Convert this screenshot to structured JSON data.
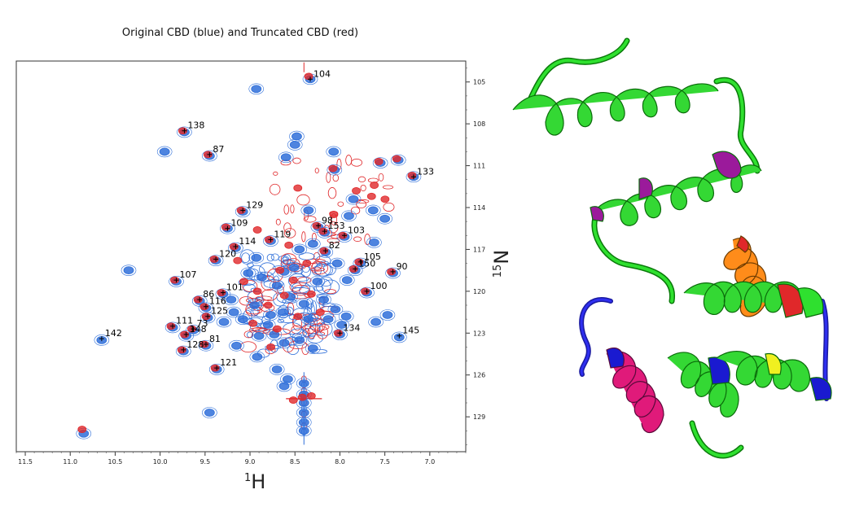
{
  "chart_data": {
    "type": "scatter",
    "title": "Original CBD (blue) and Truncated CBD (red)",
    "xlabel_prefix": "1",
    "xlabel_main": "H",
    "ylabel_prefix": "15",
    "ylabel_main": "N",
    "xlim": [
      11.6,
      6.6
    ],
    "ylim": [
      131.5,
      103.5
    ],
    "x_ticks": [
      11.5,
      11.0,
      10.5,
      10.0,
      9.5,
      9.0,
      8.5,
      8.0,
      7.5,
      7.0
    ],
    "x_tick_labels": [
      "11.5",
      "11.0",
      "10.5",
      "10.0",
      "9.5",
      "9.0",
      "8.5",
      "8.0",
      "7.5",
      "7.0"
    ],
    "y_ticks": [
      105,
      108,
      111,
      114,
      117,
      120,
      123,
      126,
      129
    ],
    "y_tick_labels": [
      "105",
      "108",
      "111",
      "114",
      "117",
      "120",
      "123",
      "126",
      "129"
    ],
    "colors": {
      "original": "#2f6fd9",
      "truncated": "#e0282a"
    },
    "series": [
      {
        "name": "Original CBD (blue)",
        "color": "#2f6fd9"
      },
      {
        "name": "Truncated CBD (red)",
        "color": "#e0282a"
      }
    ],
    "labeled_peaks": [
      {
        "label": "104",
        "x": 8.33,
        "y": 104.8
      },
      {
        "label": "138",
        "x": 9.73,
        "y": 108.5
      },
      {
        "label": "87",
        "x": 9.45,
        "y": 110.2
      },
      {
        "label": "133",
        "x": 7.18,
        "y": 111.8
      },
      {
        "label": "129",
        "x": 9.08,
        "y": 114.2
      },
      {
        "label": "109",
        "x": 9.25,
        "y": 115.5
      },
      {
        "label": "98",
        "x": 8.24,
        "y": 115.3
      },
      {
        "label": "153",
        "x": 8.17,
        "y": 115.7
      },
      {
        "label": "103",
        "x": 7.95,
        "y": 116.0
      },
      {
        "label": "119",
        "x": 8.77,
        "y": 116.3
      },
      {
        "label": "114",
        "x": 9.16,
        "y": 116.8
      },
      {
        "label": "82",
        "x": 8.16,
        "y": 117.1
      },
      {
        "label": "120",
        "x": 9.38,
        "y": 117.7
      },
      {
        "label": "105",
        "x": 7.77,
        "y": 117.9
      },
      {
        "label": "150",
        "x": 7.83,
        "y": 118.4
      },
      {
        "label": "90",
        "x": 7.41,
        "y": 118.6
      },
      {
        "label": "107",
        "x": 9.82,
        "y": 119.2
      },
      {
        "label": "101",
        "x": 9.3,
        "y": 120.1
      },
      {
        "label": "100",
        "x": 7.7,
        "y": 120.0
      },
      {
        "label": "86",
        "x": 9.56,
        "y": 120.6
      },
      {
        "label": "116",
        "x": 9.49,
        "y": 121.1
      },
      {
        "label": "125",
        "x": 9.47,
        "y": 121.8
      },
      {
        "label": "111",
        "x": 9.86,
        "y": 122.5
      },
      {
        "label": "73",
        "x": 9.63,
        "y": 122.7
      },
      {
        "label": "148",
        "x": 9.71,
        "y": 123.1
      },
      {
        "label": "134",
        "x": 8.0,
        "y": 123.0
      },
      {
        "label": "145",
        "x": 7.34,
        "y": 123.2
      },
      {
        "label": "142",
        "x": 10.65,
        "y": 123.4
      },
      {
        "label": "81",
        "x": 9.49,
        "y": 123.8
      },
      {
        "label": "128",
        "x": 9.74,
        "y": 124.2
      },
      {
        "label": "121",
        "x": 9.37,
        "y": 125.5
      }
    ],
    "blue_peaks": [
      [
        8.33,
        104.8
      ],
      [
        8.93,
        105.5
      ],
      [
        9.73,
        108.6
      ],
      [
        9.45,
        110.3
      ],
      [
        8.48,
        108.9
      ],
      [
        8.5,
        109.5
      ],
      [
        8.07,
        110.0
      ],
      [
        8.06,
        111.3
      ],
      [
        7.55,
        110.8
      ],
      [
        7.35,
        110.6
      ],
      [
        7.18,
        111.8
      ],
      [
        9.95,
        110.0
      ],
      [
        8.6,
        110.4
      ],
      [
        9.08,
        114.3
      ],
      [
        9.25,
        115.5
      ],
      [
        8.24,
        115.4
      ],
      [
        8.17,
        115.8
      ],
      [
        7.95,
        116.1
      ],
      [
        8.77,
        116.4
      ],
      [
        9.16,
        116.9
      ],
      [
        8.16,
        117.2
      ],
      [
        9.38,
        117.8
      ],
      [
        7.77,
        118.0
      ],
      [
        7.83,
        118.5
      ],
      [
        7.41,
        118.7
      ],
      [
        9.82,
        119.3
      ],
      [
        9.3,
        120.2
      ],
      [
        7.7,
        120.1
      ],
      [
        9.56,
        120.7
      ],
      [
        9.49,
        121.2
      ],
      [
        9.47,
        121.9
      ],
      [
        9.86,
        122.6
      ],
      [
        9.63,
        122.8
      ],
      [
        9.71,
        123.2
      ],
      [
        8.0,
        123.1
      ],
      [
        7.34,
        123.3
      ],
      [
        10.65,
        123.5
      ],
      [
        9.49,
        123.9
      ],
      [
        9.74,
        124.3
      ],
      [
        9.37,
        125.6
      ],
      [
        8.87,
        119.0
      ],
      [
        8.7,
        119.6
      ],
      [
        8.55,
        120.4
      ],
      [
        8.4,
        120.9
      ],
      [
        8.63,
        121.5
      ],
      [
        8.35,
        122.0
      ],
      [
        8.8,
        122.4
      ],
      [
        8.51,
        118.3
      ],
      [
        8.25,
        119.3
      ],
      [
        8.18,
        120.6
      ],
      [
        8.05,
        121.3
      ],
      [
        7.93,
        121.8
      ],
      [
        8.95,
        121.0
      ],
      [
        9.08,
        122.0
      ],
      [
        8.73,
        123.1
      ],
      [
        8.45,
        123.5
      ],
      [
        8.3,
        124.1
      ],
      [
        9.15,
        123.9
      ],
      [
        8.92,
        124.7
      ],
      [
        8.7,
        125.6
      ],
      [
        8.58,
        126.3
      ],
      [
        8.4,
        126.6
      ],
      [
        8.4,
        127.4
      ],
      [
        8.4,
        128.0
      ],
      [
        8.4,
        128.7
      ],
      [
        8.4,
        129.4
      ],
      [
        8.4,
        130.0
      ],
      [
        10.85,
        130.2
      ],
      [
        10.35,
        118.5
      ],
      [
        9.45,
        128.7
      ],
      [
        8.62,
        126.8
      ],
      [
        7.63,
        114.2
      ],
      [
        7.85,
        113.4
      ],
      [
        7.5,
        114.8
      ],
      [
        7.47,
        121.7
      ],
      [
        7.6,
        122.2
      ],
      [
        8.93,
        117.6
      ],
      [
        9.02,
        118.7
      ],
      [
        8.45,
        117.0
      ],
      [
        8.3,
        116.6
      ],
      [
        7.92,
        119.2
      ],
      [
        7.98,
        122.4
      ],
      [
        8.13,
        122.0
      ],
      [
        9.18,
        121.5
      ],
      [
        9.29,
        122.2
      ],
      [
        9.21,
        120.6
      ],
      [
        8.62,
        118.6
      ],
      [
        8.03,
        118.0
      ],
      [
        7.62,
        116.5
      ],
      [
        7.9,
        114.6
      ],
      [
        8.35,
        114.2
      ],
      [
        8.77,
        121.7
      ],
      [
        8.62,
        123.7
      ],
      [
        8.9,
        123.2
      ]
    ],
    "red_peaks": [
      [
        8.33,
        104.6
      ],
      [
        9.73,
        108.5
      ],
      [
        9.45,
        110.2
      ],
      [
        8.06,
        111.2
      ],
      [
        7.55,
        110.7
      ],
      [
        7.35,
        110.5
      ],
      [
        7.18,
        111.7
      ],
      [
        9.08,
        114.2
      ],
      [
        9.25,
        115.4
      ],
      [
        8.24,
        115.3
      ],
      [
        8.17,
        115.7
      ],
      [
        7.95,
        116.0
      ],
      [
        8.77,
        116.3
      ],
      [
        9.16,
        116.8
      ],
      [
        8.16,
        117.1
      ],
      [
        9.38,
        117.7
      ],
      [
        7.77,
        117.9
      ],
      [
        7.83,
        118.4
      ],
      [
        7.41,
        118.6
      ],
      [
        9.82,
        119.2
      ],
      [
        9.3,
        120.1
      ],
      [
        7.7,
        120.0
      ],
      [
        9.56,
        120.6
      ],
      [
        9.49,
        121.1
      ],
      [
        9.47,
        121.8
      ],
      [
        9.86,
        122.5
      ],
      [
        9.63,
        122.7
      ],
      [
        9.71,
        123.1
      ],
      [
        8.0,
        123.0
      ],
      [
        9.49,
        123.8
      ],
      [
        9.74,
        124.2
      ],
      [
        9.37,
        125.5
      ],
      [
        8.6,
        120.3
      ],
      [
        8.78,
        121.0
      ],
      [
        8.45,
        121.8
      ],
      [
        8.68,
        122.7
      ],
      [
        8.9,
        120.0
      ],
      [
        8.3,
        120.2
      ],
      [
        8.5,
        119.2
      ],
      [
        8.2,
        121.5
      ],
      [
        8.95,
        122.3
      ],
      [
        8.65,
        118.5
      ],
      [
        8.35,
        118.0
      ],
      [
        8.75,
        124.0
      ],
      [
        8.4,
        127.6
      ],
      [
        8.5,
        127.8
      ],
      [
        8.3,
        127.5
      ],
      [
        10.85,
        129.9
      ],
      [
        7.63,
        113.2
      ],
      [
        7.8,
        112.8
      ],
      [
        8.45,
        112.6
      ],
      [
        8.9,
        115.6
      ],
      [
        9.12,
        117.8
      ],
      [
        9.05,
        119.3
      ],
      [
        8.55,
        116.7
      ],
      [
        8.05,
        114.5
      ],
      [
        7.6,
        112.4
      ],
      [
        7.48,
        113.4
      ]
    ]
  }
}
